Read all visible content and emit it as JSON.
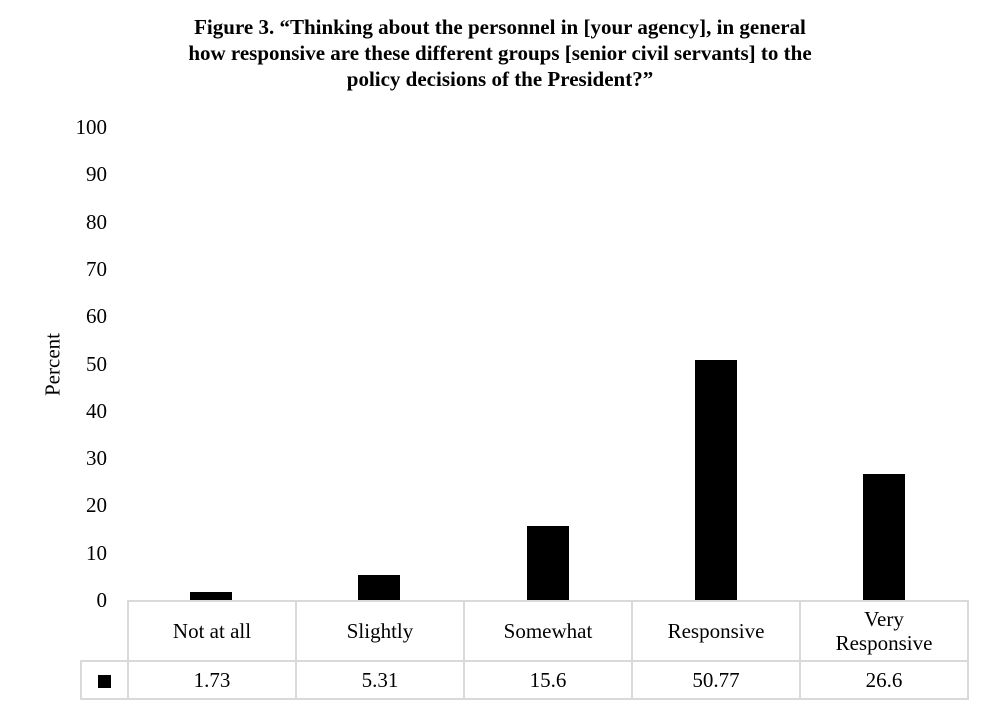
{
  "figure": {
    "title_lines": [
      "Figure 3. “Thinking about the personnel in [your agency], in general",
      "how responsive are these different groups [senior civil servants] to the",
      "policy decisions of the President?”"
    ],
    "ylabel": "Percent",
    "yticks": [
      "100",
      "90",
      "80",
      "70",
      "60",
      "50",
      "40",
      "30",
      "20",
      "10",
      "0"
    ],
    "table": {
      "categories": [
        "Not at all",
        "Slightly",
        "Somewhat",
        "Responsive",
        "Very Responsive"
      ],
      "category_lines": [
        [
          "Not at all"
        ],
        [
          "Slightly"
        ],
        [
          "Somewhat"
        ],
        [
          "Responsive"
        ],
        [
          "Very",
          "Responsive"
        ]
      ],
      "values": [
        "1.73",
        "5.31",
        "15.6",
        "50.77",
        "26.6"
      ]
    },
    "legend_icon": "black-square-icon",
    "bar_color": "#000000",
    "grid_color": "#d9d9d9"
  },
  "chart_data": {
    "type": "bar",
    "title": "Figure 3. “Thinking about the personnel in [your agency], in general how responsive are these different groups [senior civil servants] to the policy decisions of the President?”",
    "categories": [
      "Not at all",
      "Slightly",
      "Somewhat",
      "Responsive",
      "Very Responsive"
    ],
    "values": [
      1.73,
      5.31,
      15.6,
      50.77,
      26.6
    ],
    "xlabel": "",
    "ylabel": "Percent",
    "ylim": [
      0,
      100
    ],
    "yticks": [
      0,
      10,
      20,
      30,
      40,
      50,
      60,
      70,
      80,
      90,
      100
    ],
    "grid": false,
    "legend": "data table with legend key below axis"
  }
}
